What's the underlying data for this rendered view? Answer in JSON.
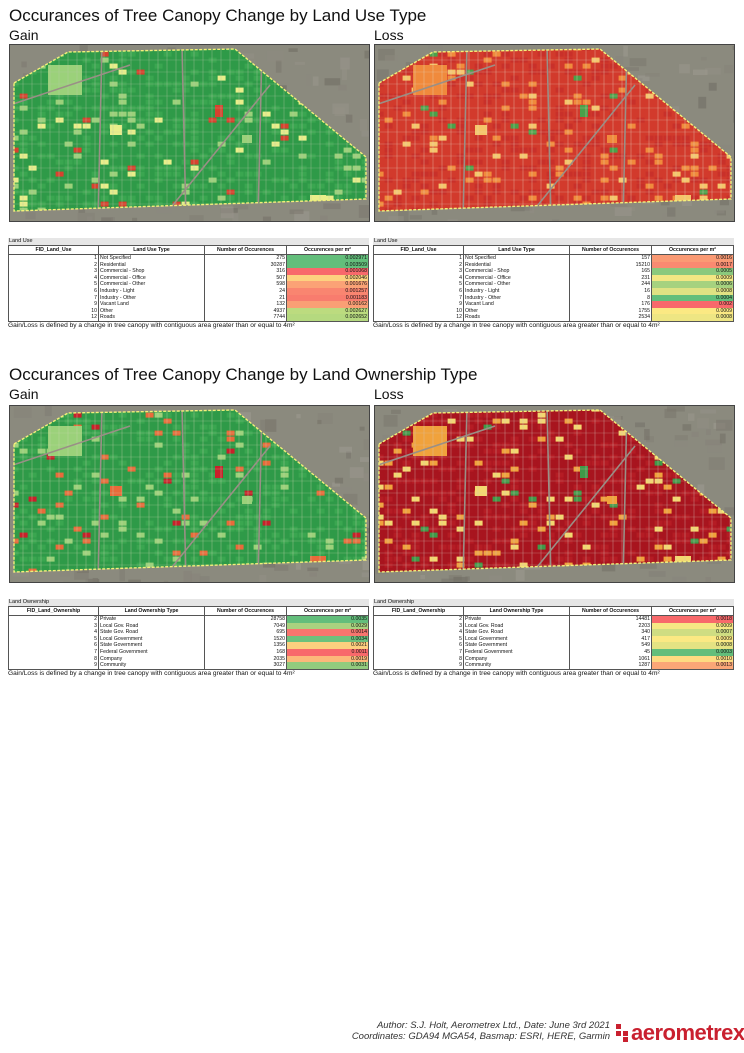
{
  "sections": [
    {
      "title": "Occurances of Tree Canopy Change by Land Use Type",
      "panels": [
        {
          "subtitle": "Gain",
          "map_palette": {
            "base": "#2f9a48",
            "alt": "#3aa650",
            "accent1": "#9bd17a",
            "accent2": "#e9ee8a",
            "accent3": "#d8412e",
            "road": "#b7c9a8"
          },
          "table_label": "Land Use",
          "headers": [
            "FID_Land_Use",
            "Land Use Type",
            "Number of Occurences",
            "Occurences per m²"
          ],
          "rows": [
            {
              "id": "1",
              "type": "Not Specified",
              "count": "275",
              "rate": "0.002971",
              "color": "#63be7b"
            },
            {
              "id": "2",
              "type": "Residential",
              "count": "30287",
              "rate": "0.003509",
              "color": "#63be7b"
            },
            {
              "id": "3",
              "type": "Commercial - Shop",
              "count": "316",
              "rate": "0.001068",
              "color": "#f8696b"
            },
            {
              "id": "4",
              "type": "Commercial - Office",
              "count": "507",
              "rate": "0.002046",
              "color": "#fdd17f"
            },
            {
              "id": "5",
              "type": "Commercial - Other",
              "count": "598",
              "rate": "0.001676",
              "color": "#fba276"
            },
            {
              "id": "6",
              "type": "Industry - Light",
              "count": "24",
              "rate": "0.001257",
              "color": "#f98570"
            },
            {
              "id": "7",
              "type": "Industry - Other",
              "count": "21",
              "rate": "0.001183",
              "color": "#f87c6e"
            },
            {
              "id": "9",
              "type": "Vacant Land",
              "count": "132",
              "rate": "0.00162",
              "color": "#fa9f75"
            },
            {
              "id": "10",
              "type": "Other",
              "count": "4937",
              "rate": "0.002627",
              "color": "#bcdb7f"
            },
            {
              "id": "12",
              "type": "Roads",
              "count": "7744",
              "rate": "0.002652",
              "color": "#b5d97f"
            }
          ],
          "note": "Gain/Loss is defined by a change in tree canopy with contiguous area greater than or equal to 4m²"
        },
        {
          "subtitle": "Loss",
          "map_palette": {
            "base": "#d23a2c",
            "alt": "#c9302a",
            "accent1": "#f08a3c",
            "accent2": "#f5c56a",
            "accent3": "#4aa14a",
            "road": "#e8d6c0"
          },
          "table_label": "Land Use",
          "headers": [
            "FID_Land_Use",
            "Land Use Type",
            "Number of Occurences",
            "Occurences per m²"
          ],
          "rows": [
            {
              "id": "1",
              "type": "Not Specified",
              "count": "157",
              "rate": "0.0016",
              "color": "#fa9a74"
            },
            {
              "id": "2",
              "type": "Residential",
              "count": "15210",
              "rate": "0.0017",
              "color": "#f98a71"
            },
            {
              "id": "3",
              "type": "Commercial - Shop",
              "count": "165",
              "rate": "0.0005",
              "color": "#8ac97d"
            },
            {
              "id": "4",
              "type": "Commercial - Office",
              "count": "231",
              "rate": "0.0009",
              "color": "#f2e783"
            },
            {
              "id": "5",
              "type": "Commercial - Other",
              "count": "244",
              "rate": "0.0006",
              "color": "#a6d27f"
            },
            {
              "id": "6",
              "type": "Industry - Light",
              "count": "16",
              "rate": "0.0008",
              "color": "#e0e283"
            },
            {
              "id": "7",
              "type": "Industry - Other",
              "count": "8",
              "rate": "0.0004",
              "color": "#63be7b"
            },
            {
              "id": "9",
              "type": "Vacant Land",
              "count": "176",
              "rate": "0.002",
              "color": "#f8696b"
            },
            {
              "id": "10",
              "type": "Other",
              "count": "1755",
              "rate": "0.0009",
              "color": "#fbe983"
            },
            {
              "id": "12",
              "type": "Roads",
              "count": "2534",
              "rate": "0.0008",
              "color": "#eee683"
            }
          ],
          "note": "Gain/Loss is defined by a change in tree canopy with contiguous area greater than or equal to 4m²"
        }
      ]
    },
    {
      "title": "Occurances of Tree Canopy Change by Land Ownership Type",
      "panels": [
        {
          "subtitle": "Gain",
          "map_palette": {
            "base": "#2f9a48",
            "alt": "#3aa650",
            "accent1": "#9bd17a",
            "accent2": "#e96a3a",
            "accent3": "#c8202a",
            "road": "#c8d8b0"
          },
          "table_label": "Land Ownership",
          "headers": [
            "FID_Land_Ownership",
            "Land Ownership Type",
            "Number of Occurences",
            "Occurences per m²"
          ],
          "rows": [
            {
              "id": "2",
              "type": "Private",
              "count": "28758",
              "rate": "0.0035",
              "color": "#63be7b"
            },
            {
              "id": "3",
              "type": "Local Gov. Road",
              "count": "7049",
              "rate": "0.0029",
              "color": "#a9d27f"
            },
            {
              "id": "4",
              "type": "State Gov. Road",
              "count": "695",
              "rate": "0.0014",
              "color": "#f8756e"
            },
            {
              "id": "5",
              "type": "Local Government",
              "count": "1520",
              "rate": "0.0034",
              "color": "#6dc17c"
            },
            {
              "id": "6",
              "type": "State Government",
              "count": "1356",
              "rate": "0.0021",
              "color": "#fdcf7f"
            },
            {
              "id": "7",
              "type": "Federal Government",
              "count": "168",
              "rate": "0.0011",
              "color": "#f8696b"
            },
            {
              "id": "8",
              "type": "Company",
              "count": "2035",
              "rate": "0.0019",
              "color": "#fcb87a"
            },
            {
              "id": "9",
              "type": "Community",
              "count": "3027",
              "rate": "0.0031",
              "color": "#92cb7e"
            }
          ],
          "note": "Gain/Loss is defined by a change in tree canopy with contiguous area greater than or equal to 4m²"
        },
        {
          "subtitle": "Loss",
          "map_palette": {
            "base": "#a8151f",
            "alt": "#b51c24",
            "accent1": "#f0a23c",
            "accent2": "#f3d870",
            "accent3": "#3f9a48",
            "road": "#d9c2b8"
          },
          "table_label": "Land Ownership",
          "headers": [
            "FID_Land_Ownership",
            "Land Ownership Type",
            "Number of Occurences",
            "Occurences per m²"
          ],
          "rows": [
            {
              "id": "2",
              "type": "Private",
              "count": "14481",
              "rate": "0.0018",
              "color": "#f8696b"
            },
            {
              "id": "3",
              "type": "Local Gov. Road",
              "count": "2203",
              "rate": "0.0009",
              "color": "#f6e884"
            },
            {
              "id": "4",
              "type": "State Gov. Road",
              "count": "340",
              "rate": "0.0007",
              "color": "#cfdd82"
            },
            {
              "id": "5",
              "type": "Local Government",
              "count": "417",
              "rate": "0.0009",
              "color": "#fbe983"
            },
            {
              "id": "6",
              "type": "State Government",
              "count": "549",
              "rate": "0.0008",
              "color": "#e4e383"
            },
            {
              "id": "7",
              "type": "Federal Government",
              "count": "45",
              "rate": "0.0003",
              "color": "#63be7b"
            },
            {
              "id": "8",
              "type": "Company",
              "count": "1061",
              "rate": "0.0010",
              "color": "#fedb81"
            },
            {
              "id": "9",
              "type": "Community",
              "count": "1287",
              "rate": "0.0013",
              "color": "#fba677"
            }
          ],
          "note": "Gain/Loss is defined by a change in tree canopy with contiguous area greater than or equal to 4m²"
        }
      ]
    }
  ],
  "footer": {
    "line1": "Author: S.J. Holt, Aerometrex Ltd., Date: June 3rd 2021",
    "line2": "Coordinates: GDA94 MGA54, Basmap: ESRI, HERE, Garmin",
    "logo": "aerometrex",
    "logo_icon": "aerometrex-logo-icon",
    "brand_color": "#c9202f"
  }
}
